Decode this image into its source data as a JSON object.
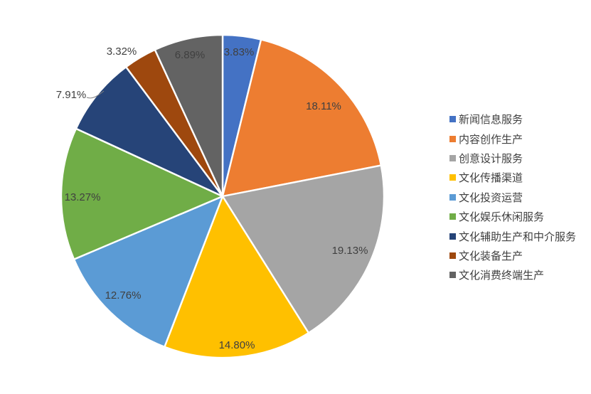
{
  "chart_data": {
    "type": "pie",
    "title": "",
    "legend_position": "right",
    "grid": false,
    "categories": [
      "新闻信息服务",
      "内容创作生产",
      "创意设计服务",
      "文化传播渠道",
      "文化投资运营",
      "文化娱乐休闲服务",
      "文化辅助生产和中介服务",
      "文化装备生产",
      "文化消费终端生产"
    ],
    "values": [
      3.83,
      18.11,
      19.13,
      14.8,
      12.76,
      13.27,
      7.91,
      3.32,
      6.89
    ],
    "data_labels": [
      "3.83%",
      "18.11%",
      "19.13%",
      "14.80%",
      "12.76%",
      "13.27%",
      "7.91%",
      "3.32%",
      "6.89%"
    ],
    "colors": [
      "#4472C4",
      "#ED7D31",
      "#A5A5A5",
      "#FFC000",
      "#5B9BD5",
      "#70AD47",
      "#264478",
      "#9E480E",
      "#636363"
    ],
    "label_color": "#404040",
    "slice_border_color": "#FFFFFF",
    "background_color": "#FFFFFF"
  }
}
